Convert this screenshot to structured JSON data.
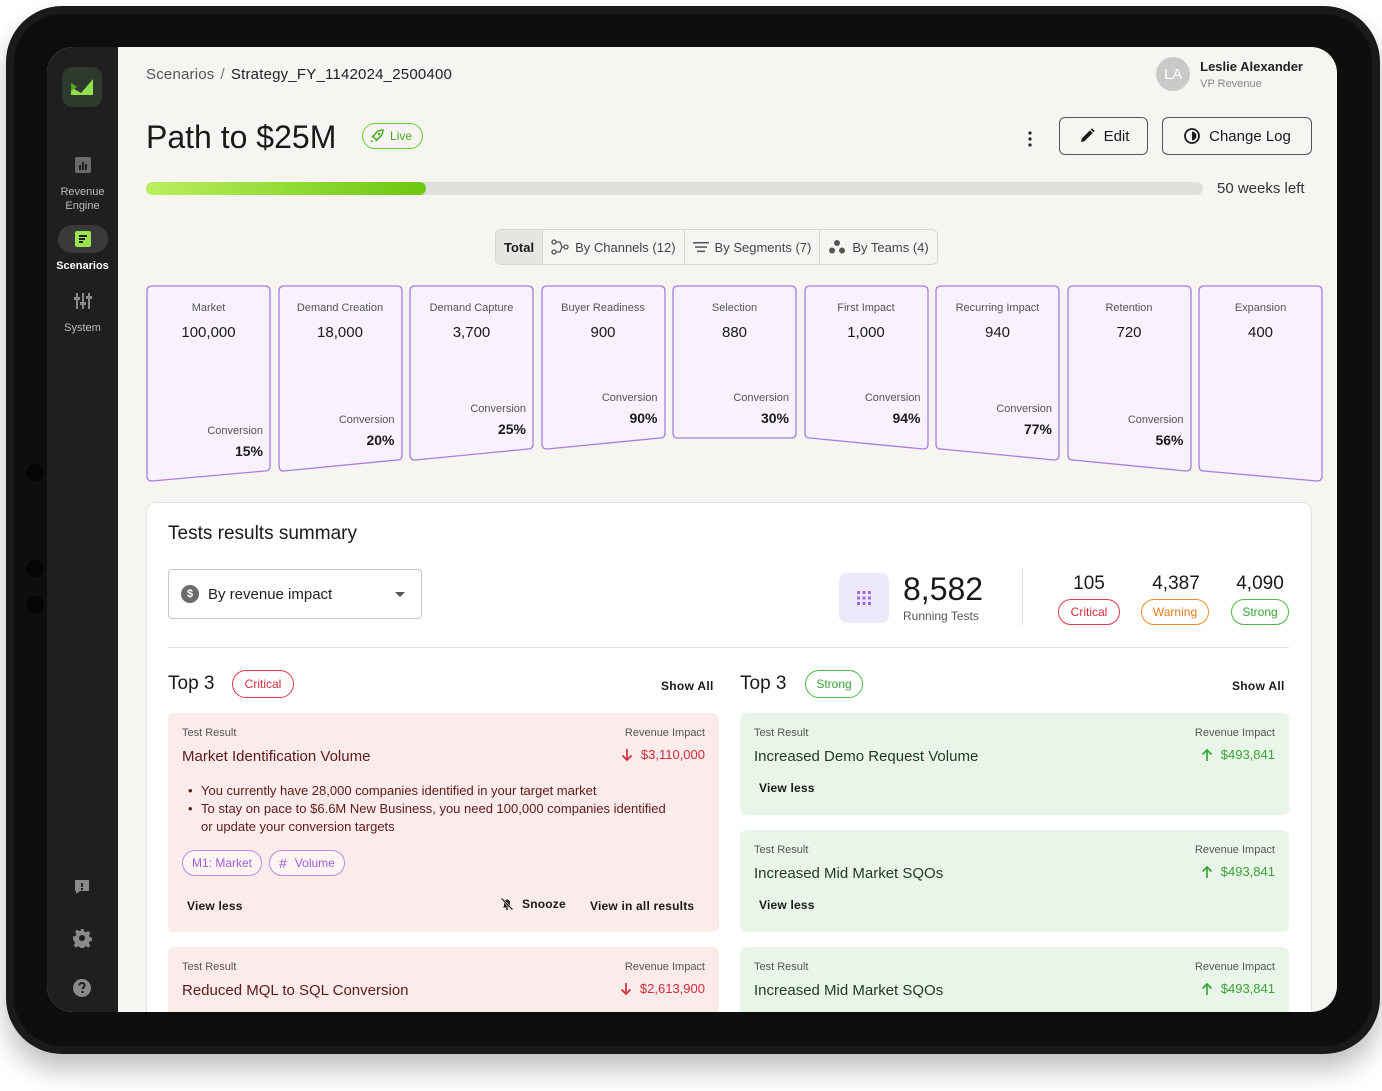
{
  "sidebar": {
    "items": [
      {
        "label_line1": "Revenue",
        "label_line2": "Engine",
        "icon": "chart-icon"
      },
      {
        "label_line1": "Scenarios",
        "label_line2": "",
        "icon": "scenarios-icon",
        "active": true
      },
      {
        "label_line1": "System",
        "label_line2": "",
        "icon": "sliders-icon"
      }
    ],
    "bottom_icons": [
      "feedback-icon",
      "gear-icon",
      "help-icon"
    ]
  },
  "breadcrumb": {
    "parent": "Scenarios",
    "separator": "/",
    "current": "Strategy_FY_1142024_2500400"
  },
  "user": {
    "initials": "LA",
    "name": "Leslie Alexander",
    "role": "VP Revenue"
  },
  "page": {
    "title": "Path to $25M",
    "status": "Live"
  },
  "toolbar": {
    "edit_label": "Edit",
    "changelog_label": "Change Log"
  },
  "progress": {
    "fraction": 0.265,
    "label": "50 weeks left"
  },
  "tabs": [
    {
      "label": "Total",
      "active": true
    },
    {
      "label": "By Channels (12)"
    },
    {
      "label": "By Segments (7)"
    },
    {
      "label": "By Teams (4)"
    }
  ],
  "funnel": [
    {
      "label": "Market",
      "value": "100,000",
      "conv_label": "Conversion",
      "conv": "15%"
    },
    {
      "label": "Demand  Creation",
      "value": "18,000",
      "conv_label": "Conversion",
      "conv": "20%"
    },
    {
      "label": "Demand Capture",
      "value": "3,700",
      "conv_label": "Conversion",
      "conv": "25%"
    },
    {
      "label": "Buyer Readiness",
      "value": "900",
      "conv_label": "Conversion",
      "conv": "90%"
    },
    {
      "label": "Selection",
      "value": "880",
      "conv_label": "Conversion",
      "conv": "30%"
    },
    {
      "label": "First Impact",
      "value": "1,000",
      "conv_label": "Conversion",
      "conv": "94%"
    },
    {
      "label": "Recurring Impact",
      "value": "940",
      "conv_label": "Conversion",
      "conv": "77%"
    },
    {
      "label": "Retention",
      "value": "720",
      "conv_label": "Conversion",
      "conv": "56%"
    },
    {
      "label": "Expansion",
      "value": "400",
      "conv_label": "",
      "conv": ""
    }
  ],
  "summary": {
    "title": "Tests results summary",
    "filter": "By revenue impact",
    "running_count": "8,582",
    "running_label": "Running Tests",
    "critical_count": "105",
    "critical_label": "Critical",
    "warning_count": "4,387",
    "warning_label": "Warning",
    "strong_count": "4,090",
    "strong_label": "Strong"
  },
  "critical_col": {
    "title": "Top 3",
    "pill": "Critical",
    "show_all": "Show All",
    "cards": [
      {
        "small": "Test Result",
        "small_r": "Revenue Impact",
        "title": "Market Identification Volume",
        "amount": "$3,110,000",
        "bullets": [
          "You currently have 28,000 companies identified in your target market",
          "To stay on pace to $6.6M New Business, you need 100,000 companies identified or update your conversion targets"
        ],
        "tags": [
          "M1: Market",
          "Volume"
        ],
        "view_less": "View less",
        "snooze": "Snooze",
        "view_all": "View in all results"
      },
      {
        "small": "Test Result",
        "small_r": "Revenue Impact",
        "title": "Reduced MQL to SQL Conversion",
        "amount": "$2,613,900"
      }
    ]
  },
  "strong_col": {
    "title": "Top 3",
    "pill": "Strong",
    "show_all": "Show All",
    "cards": [
      {
        "small": "Test Result",
        "small_r": "Revenue Impact",
        "title": "Increased Demo Request Volume",
        "amount": "$493,841",
        "view_less": "View less"
      },
      {
        "small": "Test Result",
        "small_r": "Revenue Impact",
        "title": "Increased Mid Market SQOs",
        "amount": "$493,841",
        "view_less": "View less"
      },
      {
        "small": "Test Result",
        "small_r": "Revenue Impact",
        "title": "Increased Mid Market SQOs",
        "amount": "$493,841"
      }
    ]
  },
  "colors": {
    "accent": "#6cc70f",
    "critical": "#d42c3c",
    "warning": "#e47c1c",
    "strong": "#3aa536",
    "funnel_border": "#a77ee0",
    "funnel_fill": "#f7f2fd"
  }
}
